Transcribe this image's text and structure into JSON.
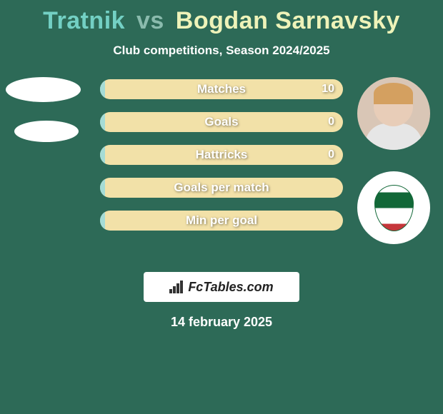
{
  "header": {
    "player1": "Tratnik",
    "vs": "vs",
    "player2": "Bogdan Sarnavsky"
  },
  "subtitle": "Club competitions, Season 2024/2025",
  "stats": {
    "rows": [
      {
        "label": "Matches",
        "left": "",
        "right": "10",
        "left_fill_pct": 2
      },
      {
        "label": "Goals",
        "left": "",
        "right": "0",
        "left_fill_pct": 2
      },
      {
        "label": "Hattricks",
        "left": "",
        "right": "0",
        "left_fill_pct": 2
      },
      {
        "label": "Goals per match",
        "left": "",
        "right": "",
        "left_fill_pct": 2
      },
      {
        "label": "Min per goal",
        "left": "",
        "right": "",
        "left_fill_pct": 2
      }
    ]
  },
  "colors": {
    "background": "#2d6a57",
    "player1_color": "#73d0c4",
    "player2_color": "#eef3b9",
    "bar_fill_left": "#a5dcd6",
    "bar_bg_right": "#f2e1a8"
  },
  "logo": "FcTables.com",
  "date": "14 february 2025"
}
